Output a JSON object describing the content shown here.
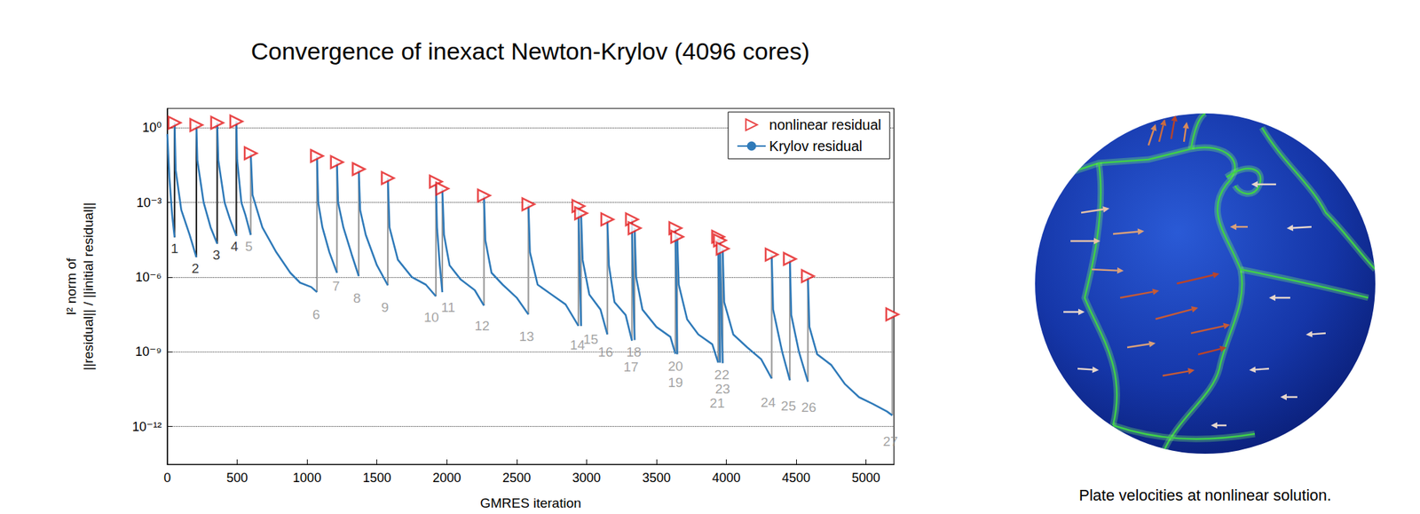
{
  "chart_data": {
    "type": "line",
    "title": "Convergence of inexact Newton-Krylov (4096 cores)",
    "x_label": "GMRES iteration",
    "y_label": [
      "l² norm of",
      "||residual|| / ||initial residual||"
    ],
    "xlim": [
      0,
      5200
    ],
    "xticks": [
      0,
      500,
      1000,
      1500,
      2000,
      2500,
      3000,
      3500,
      4000,
      4500,
      5000
    ],
    "ylim": [
      3e-14,
      6
    ],
    "yticks": [
      {
        "value": 1,
        "label": "10⁰"
      },
      {
        "value": 0.001,
        "label": "10⁻³"
      },
      {
        "value": 1e-06,
        "label": "10⁻⁶"
      },
      {
        "value": 1e-09,
        "label": "10⁻⁹"
      },
      {
        "value": 1e-12,
        "label": "10⁻¹²"
      }
    ],
    "log": "y",
    "grid": true,
    "legend": "top-right",
    "series": [
      {
        "name": "nonlinear residual",
        "type": "scatter",
        "color": "#e41a1c",
        "marker": "triangle-right",
        "values": [
          [
            52,
            1.6
          ],
          [
            208,
            1.3
          ],
          [
            357,
            1.6
          ],
          [
            494,
            1.8
          ],
          [
            597,
            0.095
          ],
          [
            1071,
            0.074
          ],
          [
            1214,
            0.042
          ],
          [
            1370,
            0.022
          ],
          [
            1578,
            0.0096
          ],
          [
            1922,
            0.0069
          ],
          [
            1968,
            0.0036
          ],
          [
            2266,
            0.0019
          ],
          [
            2584,
            0.00085
          ],
          [
            2942,
            0.00072
          ],
          [
            2961,
            0.00037
          ],
          [
            3149,
            0.00021
          ],
          [
            3325,
            0.00021
          ],
          [
            3344,
            9.3e-05
          ],
          [
            3636,
            9.3e-05
          ],
          [
            3649,
            4.2e-05
          ],
          [
            3942,
            4.2e-05
          ],
          [
            3955,
            3e-05
          ],
          [
            3974,
            1.4e-05
          ],
          [
            4325,
            8.1e-06
          ],
          [
            4455,
            5.4e-06
          ],
          [
            4584,
            1.1e-06
          ],
          [
            5188,
            3.2e-08
          ]
        ]
      },
      {
        "name": "Krylov residual",
        "type": "line",
        "color": "#2f7ab9",
        "marker": "none",
        "line_style": "solid",
        "values": [
          [
            0,
            0.56
          ],
          [
            15,
            0.01
          ],
          [
            35,
            0.0003
          ],
          [
            52,
            4e-05
          ],
          null,
          [
            52,
            1.6
          ],
          [
            60,
            0.02
          ],
          [
            100,
            0.0005
          ],
          [
            160,
            5e-05
          ],
          [
            208,
            6.3e-06
          ],
          null,
          [
            208,
            1.3
          ],
          [
            215,
            0.05
          ],
          [
            260,
            0.001
          ],
          [
            310,
            0.0001
          ],
          [
            357,
            2.2e-05
          ],
          null,
          [
            357,
            1.6
          ],
          [
            365,
            0.05
          ],
          [
            410,
            0.001
          ],
          [
            450,
            0.0002
          ],
          [
            494,
            4.5e-05
          ],
          null,
          [
            494,
            1.8
          ],
          [
            500,
            0.05
          ],
          [
            530,
            0.001
          ],
          [
            560,
            0.0003
          ],
          [
            597,
            5e-05
          ],
          null,
          [
            597,
            0.095
          ],
          [
            610,
            0.002
          ],
          [
            680,
            0.0001
          ],
          [
            780,
            1e-05
          ],
          [
            880,
            1.5e-06
          ],
          [
            950,
            6e-07
          ],
          [
            1030,
            4e-07
          ],
          [
            1071,
            2.5e-07
          ],
          null,
          [
            1071,
            0.074
          ],
          [
            1080,
            0.001
          ],
          [
            1110,
            0.0001
          ],
          [
            1160,
            1e-05
          ],
          [
            1214,
            1.5e-06
          ],
          null,
          [
            1214,
            0.042
          ],
          [
            1222,
            0.001
          ],
          [
            1260,
            0.0001
          ],
          [
            1320,
            8e-06
          ],
          [
            1370,
            1.1e-06
          ],
          null,
          [
            1370,
            0.022
          ],
          [
            1380,
            0.0005
          ],
          [
            1420,
            5e-05
          ],
          [
            1500,
            3e-06
          ],
          [
            1578,
            4.7e-07
          ],
          null,
          [
            1578,
            0.0096
          ],
          [
            1590,
            0.0001
          ],
          [
            1650,
            5e-06
          ],
          [
            1750,
            1e-06
          ],
          [
            1850,
            5e-07
          ],
          [
            1922,
            1.7e-07
          ],
          null,
          [
            1922,
            0.0069
          ],
          [
            1930,
            0.0001
          ],
          [
            1950,
            3e-06
          ],
          [
            1968,
            2.5e-07
          ],
          null,
          [
            1968,
            0.0036
          ],
          [
            1980,
            5e-05
          ],
          [
            2020,
            3e-06
          ],
          [
            2100,
            8e-07
          ],
          [
            2200,
            3e-07
          ],
          [
            2266,
            7.2e-08
          ],
          null,
          [
            2266,
            0.0019
          ],
          [
            2276,
            3e-05
          ],
          [
            2320,
            1.5e-06
          ],
          [
            2400,
            5e-07
          ],
          [
            2500,
            1.5e-07
          ],
          [
            2584,
            3.2e-08
          ],
          null,
          [
            2584,
            0.00085
          ],
          [
            2595,
            1e-05
          ],
          [
            2650,
            5e-07
          ],
          [
            2750,
            2e-07
          ],
          [
            2850,
            8e-08
          ],
          [
            2942,
            1.1e-08
          ],
          null,
          [
            2942,
            0.00072
          ],
          [
            2950,
            3e-06
          ],
          [
            2961,
            1.1e-08
          ],
          null,
          [
            2961,
            0.00037
          ],
          [
            2972,
            5e-06
          ],
          [
            3020,
            2e-07
          ],
          [
            3100,
            5e-08
          ],
          [
            3149,
            5e-09
          ],
          null,
          [
            3149,
            0.00021
          ],
          [
            3160,
            3e-06
          ],
          [
            3200,
            1e-07
          ],
          [
            3280,
            3e-08
          ],
          [
            3325,
            2.8e-09
          ],
          null,
          [
            3325,
            0.00021
          ],
          [
            3332,
            1e-06
          ],
          [
            3344,
            3e-09
          ],
          null,
          [
            3344,
            9.3e-05
          ],
          [
            3355,
            1e-06
          ],
          [
            3400,
            5e-08
          ],
          [
            3500,
            1e-08
          ],
          [
            3600,
            4e-09
          ],
          [
            3636,
            8.3e-10
          ],
          null,
          [
            3636,
            9.3e-05
          ],
          [
            3642,
            5e-07
          ],
          [
            3649,
            8e-10
          ],
          null,
          [
            3649,
            4.2e-05
          ],
          [
            3660,
            5e-07
          ],
          [
            3720,
            2e-08
          ],
          [
            3800,
            5e-09
          ],
          [
            3900,
            2e-09
          ],
          [
            3942,
            3.7e-10
          ],
          null,
          [
            3942,
            4.2e-05
          ],
          [
            3948,
            3e-07
          ],
          [
            3955,
            3.7e-10
          ],
          null,
          [
            3955,
            3e-05
          ],
          [
            3962,
            2e-07
          ],
          [
            3974,
            3.5e-10
          ],
          null,
          [
            3974,
            1.4e-05
          ],
          [
            3985,
            1e-07
          ],
          [
            4050,
            5e-09
          ],
          [
            4150,
            1.5e-09
          ],
          [
            4250,
            5e-10
          ],
          [
            4325,
            8.5e-11
          ],
          null,
          [
            4325,
            8.1e-06
          ],
          [
            4335,
            5e-08
          ],
          [
            4400,
            1e-09
          ],
          [
            4455,
            7.2e-11
          ],
          null,
          [
            4455,
            5.4e-06
          ],
          [
            4465,
            3e-08
          ],
          [
            4520,
            1e-09
          ],
          [
            4584,
            6.3e-11
          ],
          null,
          [
            4584,
            1.1e-06
          ],
          [
            4595,
            1e-08
          ],
          [
            4650,
            8e-10
          ],
          [
            4750,
            3e-10
          ],
          [
            4850,
            5e-11
          ],
          [
            4950,
            1.5e-11
          ],
          [
            5050,
            8e-12
          ],
          [
            5150,
            4e-12
          ],
          [
            5188,
            2.8e-12
          ]
        ]
      }
    ],
    "annotations": [
      {
        "text": "1",
        "x": 52,
        "y": 1.4e-05,
        "color": "#000000"
      },
      {
        "text": "2",
        "x": 201,
        "y": 2.2e-06,
        "color": "#000000"
      },
      {
        "text": "3",
        "x": 351,
        "y": 8.1e-06,
        "color": "#000000"
      },
      {
        "text": "4",
        "x": 481,
        "y": 1.7e-05,
        "color": "#000000"
      },
      {
        "text": "5",
        "x": 584,
        "y": 1.7e-05,
        "color": "#8c8c8c"
      },
      {
        "text": "6",
        "x": 1065,
        "y": 3.2e-08,
        "color": "#8c8c8c"
      },
      {
        "text": "7",
        "x": 1208,
        "y": 4.4e-07,
        "color": "#8c8c8c"
      },
      {
        "text": "8",
        "x": 1357,
        "y": 1.4e-07,
        "color": "#8c8c8c"
      },
      {
        "text": "9",
        "x": 1558,
        "y": 6.2e-08,
        "color": "#8c8c8c"
      },
      {
        "text": "10",
        "x": 1890,
        "y": 2.5e-08,
        "color": "#8c8c8c"
      },
      {
        "text": "11",
        "x": 2010,
        "y": 6.3e-08,
        "color": "#8c8c8c"
      },
      {
        "text": "12",
        "x": 2253,
        "y": 1.1e-08,
        "color": "#8c8c8c"
      },
      {
        "text": "13",
        "x": 2571,
        "y": 4.2e-09,
        "color": "#8c8c8c"
      },
      {
        "text": "14",
        "x": 2935,
        "y": 1.9e-09,
        "color": "#8c8c8c"
      },
      {
        "text": "15",
        "x": 3030,
        "y": 3.3e-09,
        "color": "#8c8c8c"
      },
      {
        "text": "16",
        "x": 3136,
        "y": 9.8e-10,
        "color": "#8c8c8c"
      },
      {
        "text": "17",
        "x": 3318,
        "y": 2.5e-10,
        "color": "#8c8c8c"
      },
      {
        "text": "18",
        "x": 3338,
        "y": 1e-09,
        "color": "#8c8c8c"
      },
      {
        "text": "19",
        "x": 3636,
        "y": 6e-11,
        "color": "#8c8c8c"
      },
      {
        "text": "20",
        "x": 3636,
        "y": 2.6e-10,
        "color": "#8c8c8c"
      },
      {
        "text": "21",
        "x": 3935,
        "y": 8.9e-12,
        "color": "#8c8c8c"
      },
      {
        "text": "22",
        "x": 3968,
        "y": 1.2e-10,
        "color": "#8c8c8c"
      },
      {
        "text": "23",
        "x": 3974,
        "y": 3.2e-11,
        "color": "#8c8c8c"
      },
      {
        "text": "24",
        "x": 4300,
        "y": 9.5e-12,
        "color": "#8c8c8c"
      },
      {
        "text": "25",
        "x": 4445,
        "y": 6.8e-12,
        "color": "#8c8c8c"
      },
      {
        "text": "26",
        "x": 4590,
        "y": 5.8e-12,
        "color": "#8c8c8c"
      },
      {
        "text": "27",
        "x": 5175,
        "y": 2.5e-13,
        "color": "#8c8c8c"
      }
    ]
  },
  "image": {
    "caption": "Plate velocities at nonlinear solution."
  }
}
